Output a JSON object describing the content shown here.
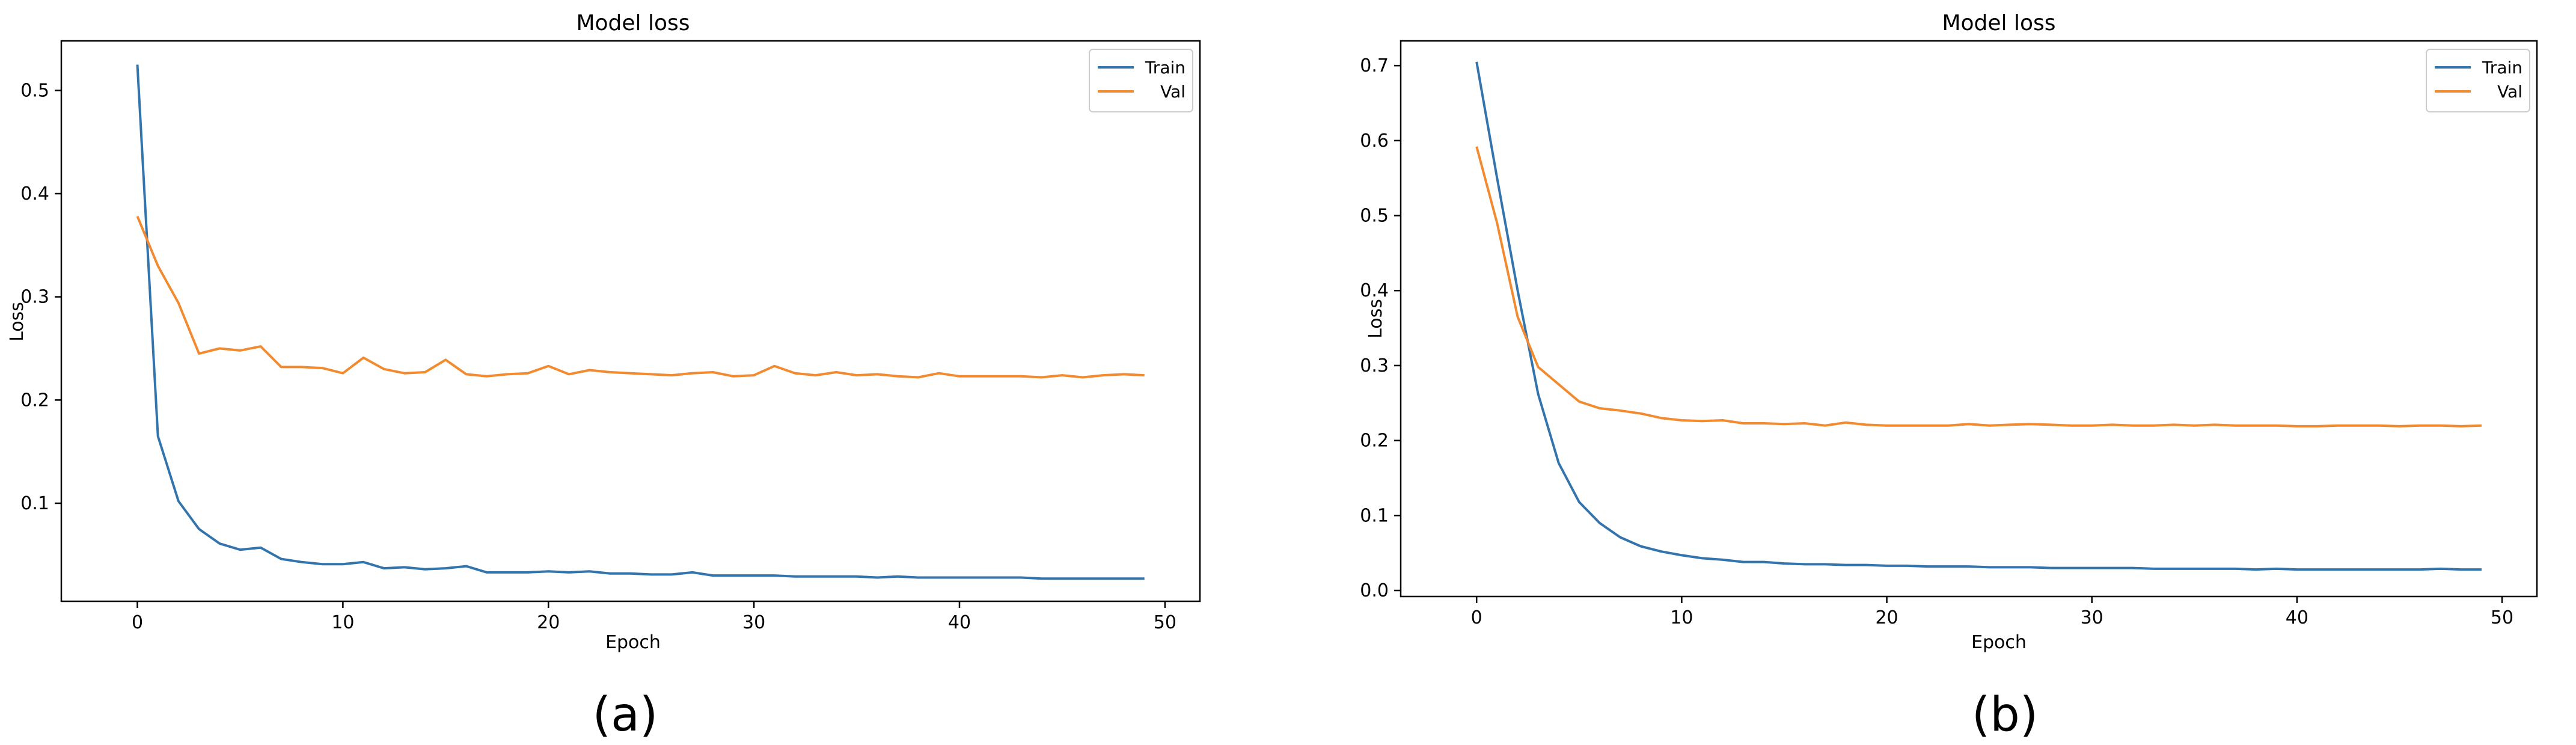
{
  "colors": {
    "train": "#3474ad",
    "val": "#f28a30"
  },
  "chart_data": [
    {
      "type": "line",
      "panel_label": "(a)",
      "title": "Model loss",
      "xlabel": "Epoch",
      "ylabel": "Loss",
      "xlim": [
        -3.7,
        51.7
      ],
      "ylim": [
        0.005,
        0.548
      ],
      "xticks": [
        0,
        10,
        20,
        30,
        40,
        50
      ],
      "yticks": [
        0.1,
        0.2,
        0.3,
        0.4,
        0.5
      ],
      "ytick_labels": [
        "0.1",
        "0.2",
        "0.3",
        "0.4",
        "0.5"
      ],
      "grid": false,
      "legend_position": "upper-right",
      "x": [
        0,
        1,
        2,
        3,
        4,
        5,
        6,
        7,
        8,
        9,
        10,
        11,
        12,
        13,
        14,
        15,
        16,
        17,
        18,
        19,
        20,
        21,
        22,
        23,
        24,
        25,
        26,
        27,
        28,
        29,
        30,
        31,
        32,
        33,
        34,
        35,
        36,
        37,
        38,
        39,
        40,
        41,
        42,
        43,
        44,
        45,
        46,
        47,
        48,
        49
      ],
      "series": [
        {
          "name": "Train",
          "color": "#3474ad",
          "values": [
            0.525,
            0.165,
            0.102,
            0.075,
            0.061,
            0.055,
            0.057,
            0.046,
            0.043,
            0.041,
            0.041,
            0.043,
            0.037,
            0.038,
            0.036,
            0.037,
            0.039,
            0.033,
            0.033,
            0.033,
            0.034,
            0.033,
            0.034,
            0.032,
            0.032,
            0.031,
            0.031,
            0.033,
            0.03,
            0.03,
            0.03,
            0.03,
            0.029,
            0.029,
            0.029,
            0.029,
            0.028,
            0.029,
            0.028,
            0.028,
            0.028,
            0.028,
            0.028,
            0.028,
            0.027,
            0.027,
            0.027,
            0.027,
            0.027,
            0.027
          ]
        },
        {
          "name": "Val",
          "color": "#f28a30",
          "values": [
            0.378,
            0.33,
            0.294,
            0.245,
            0.25,
            0.248,
            0.252,
            0.232,
            0.232,
            0.231,
            0.226,
            0.241,
            0.23,
            0.226,
            0.227,
            0.239,
            0.225,
            0.223,
            0.225,
            0.226,
            0.233,
            0.225,
            0.229,
            0.227,
            0.226,
            0.225,
            0.224,
            0.226,
            0.227,
            0.223,
            0.224,
            0.233,
            0.226,
            0.224,
            0.227,
            0.224,
            0.225,
            0.223,
            0.222,
            0.226,
            0.223,
            0.223,
            0.223,
            0.223,
            0.222,
            0.224,
            0.222,
            0.224,
            0.225,
            0.224
          ]
        }
      ]
    },
    {
      "type": "line",
      "panel_label": "(b)",
      "title": "Model loss",
      "xlabel": "Epoch",
      "ylabel": "Loss",
      "xlim": [
        -3.7,
        51.7
      ],
      "ylim": [
        -0.008,
        0.733
      ],
      "xticks": [
        0,
        10,
        20,
        30,
        40,
        50
      ],
      "yticks": [
        0.0,
        0.1,
        0.2,
        0.3,
        0.4,
        0.5,
        0.6,
        0.7
      ],
      "ytick_labels": [
        "0.0",
        "0.1",
        "0.2",
        "0.3",
        "0.4",
        "0.5",
        "0.6",
        "0.7"
      ],
      "grid": false,
      "legend_position": "upper-right",
      "x": [
        0,
        1,
        2,
        3,
        4,
        5,
        6,
        7,
        8,
        9,
        10,
        11,
        12,
        13,
        14,
        15,
        16,
        17,
        18,
        19,
        20,
        21,
        22,
        23,
        24,
        25,
        26,
        27,
        28,
        29,
        30,
        31,
        32,
        33,
        34,
        35,
        36,
        37,
        38,
        39,
        40,
        41,
        42,
        43,
        44,
        45,
        46,
        47,
        48,
        49
      ],
      "series": [
        {
          "name": "Train",
          "color": "#3474ad",
          "values": [
            0.705,
            0.55,
            0.4,
            0.262,
            0.17,
            0.118,
            0.09,
            0.071,
            0.059,
            0.052,
            0.047,
            0.043,
            0.041,
            0.038,
            0.038,
            0.036,
            0.035,
            0.035,
            0.034,
            0.034,
            0.033,
            0.033,
            0.032,
            0.032,
            0.032,
            0.031,
            0.031,
            0.031,
            0.03,
            0.03,
            0.03,
            0.03,
            0.03,
            0.029,
            0.029,
            0.029,
            0.029,
            0.029,
            0.028,
            0.029,
            0.028,
            0.028,
            0.028,
            0.028,
            0.028,
            0.028,
            0.028,
            0.029,
            0.028,
            0.028
          ]
        },
        {
          "name": "Val",
          "color": "#f28a30",
          "values": [
            0.592,
            0.49,
            0.365,
            0.298,
            0.275,
            0.252,
            0.243,
            0.24,
            0.236,
            0.23,
            0.227,
            0.226,
            0.227,
            0.223,
            0.223,
            0.222,
            0.223,
            0.22,
            0.224,
            0.221,
            0.22,
            0.22,
            0.22,
            0.22,
            0.222,
            0.22,
            0.221,
            0.222,
            0.221,
            0.22,
            0.22,
            0.221,
            0.22,
            0.22,
            0.221,
            0.22,
            0.221,
            0.22,
            0.22,
            0.22,
            0.219,
            0.219,
            0.22,
            0.22,
            0.22,
            0.219,
            0.22,
            0.22,
            0.219,
            0.22
          ]
        }
      ]
    }
  ]
}
